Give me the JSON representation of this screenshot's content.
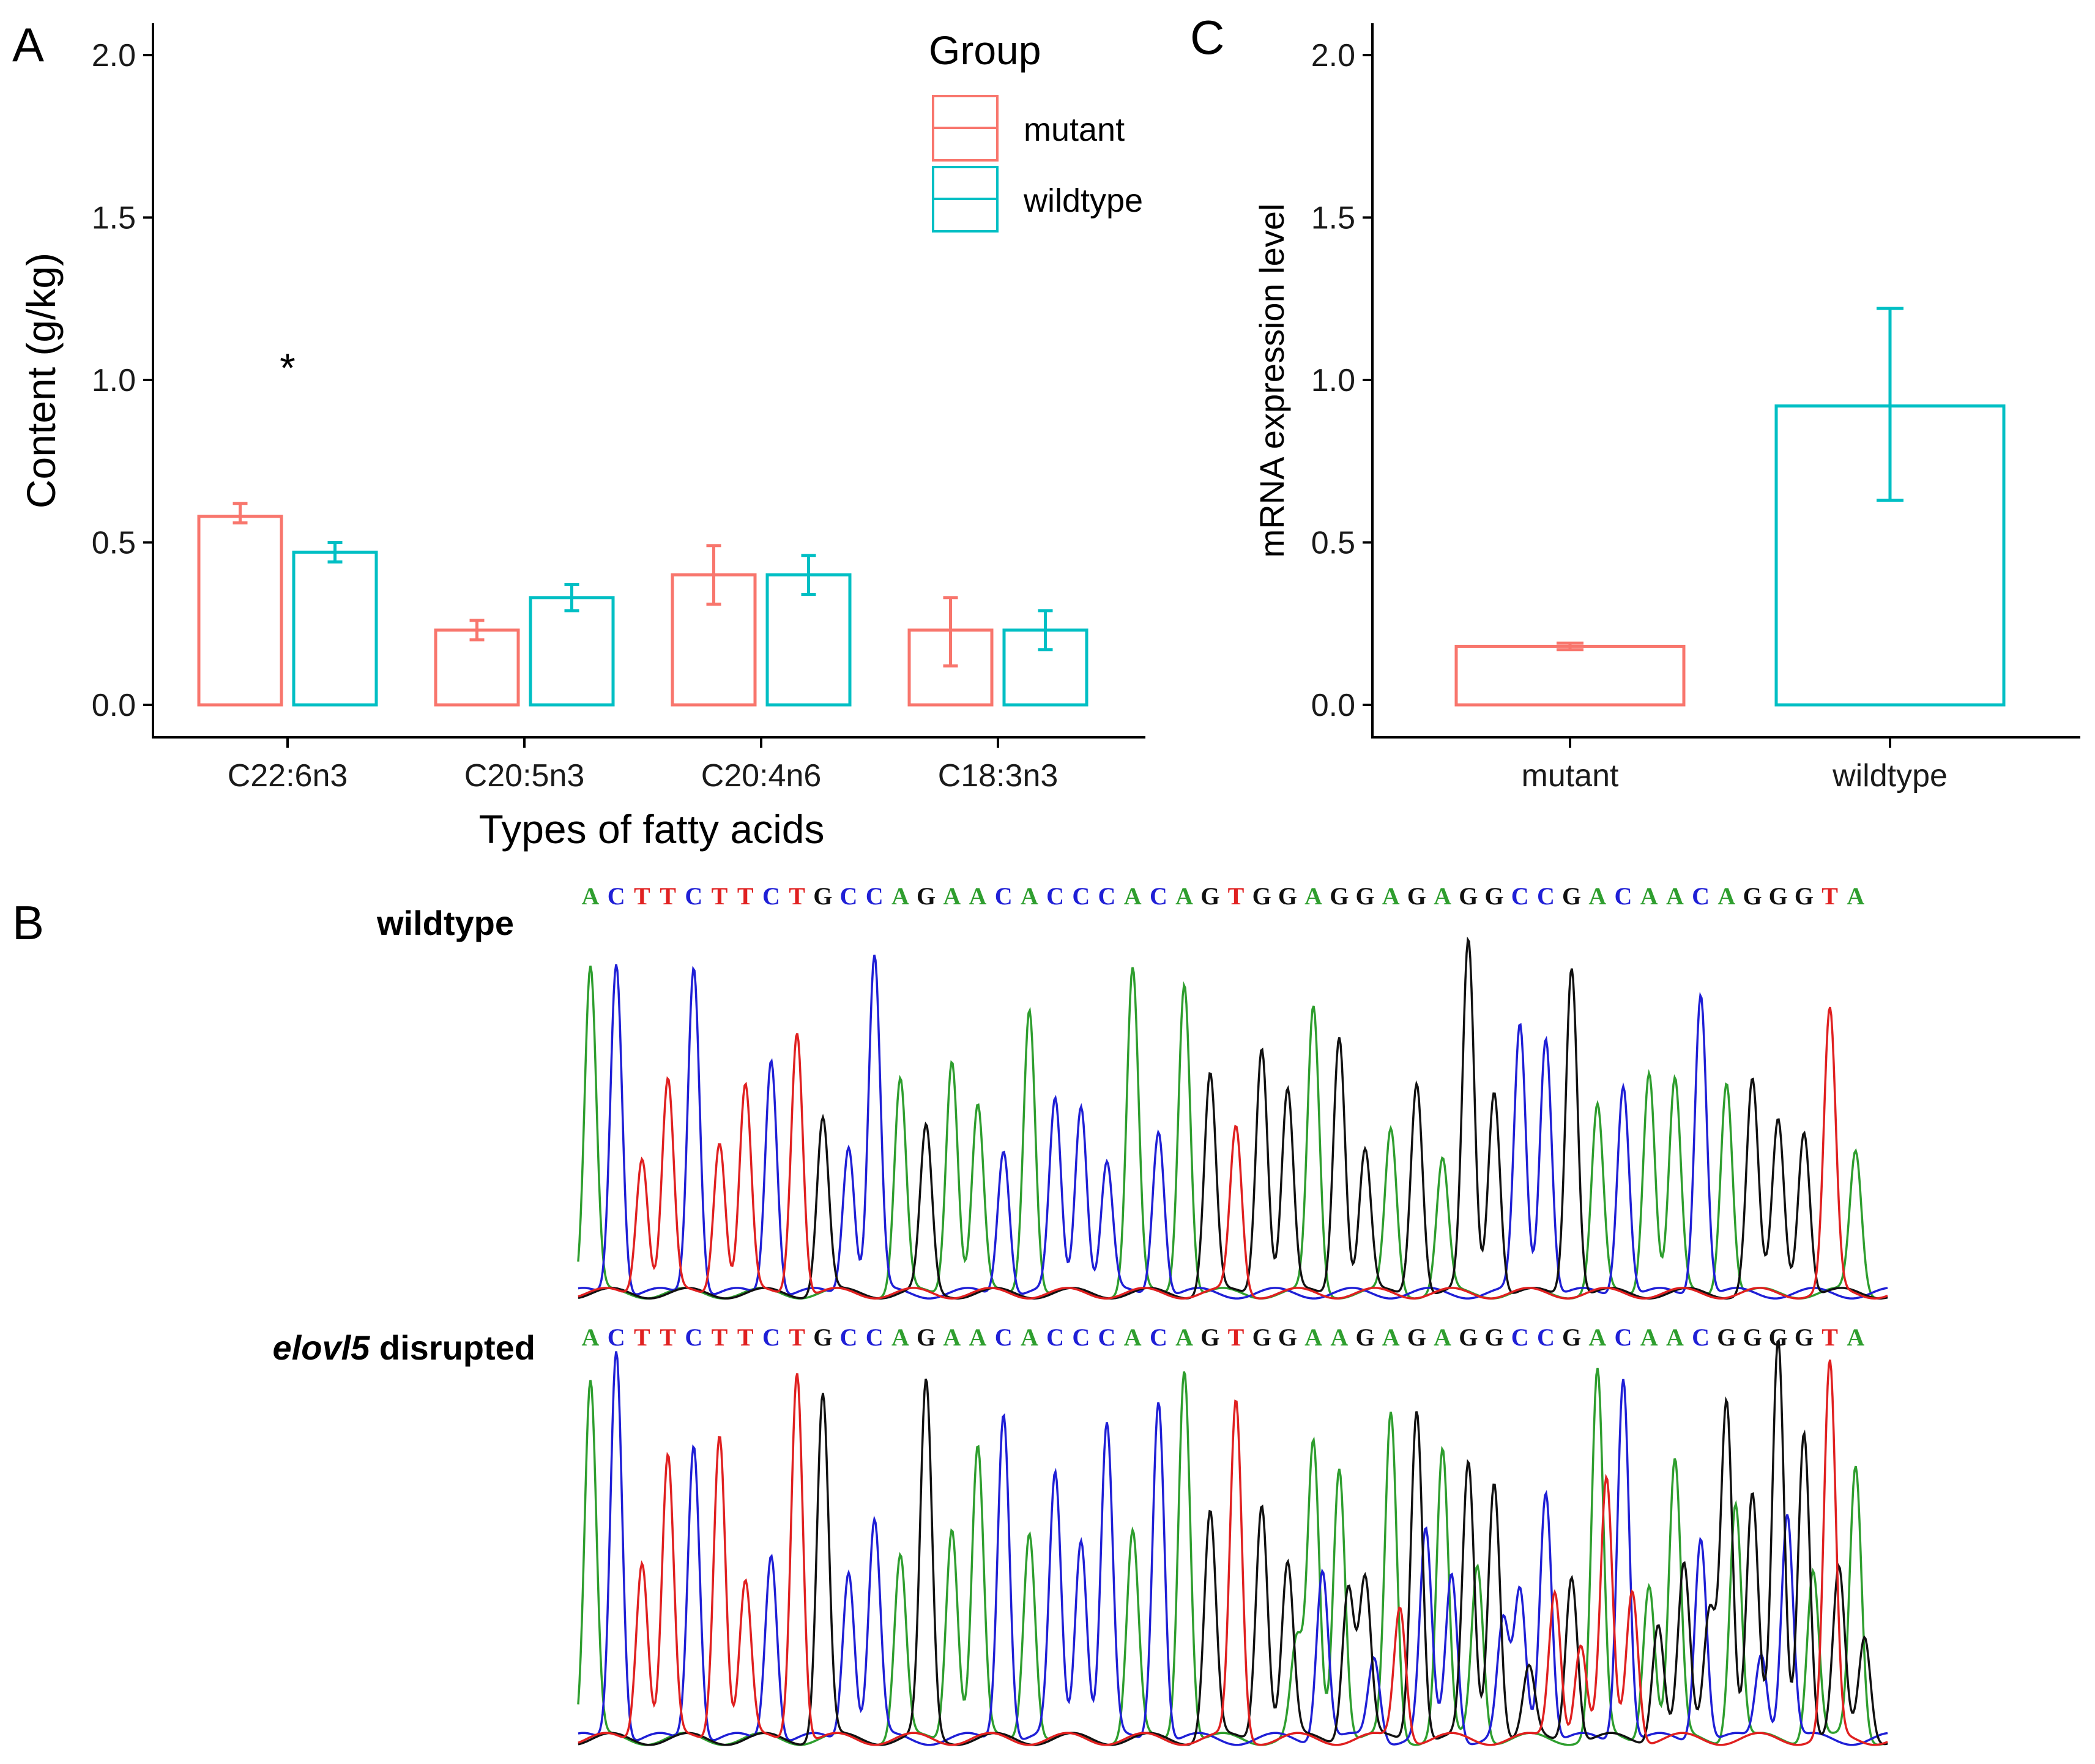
{
  "colors": {
    "mutant": "#F8766D",
    "wildtype": "#00BFC4",
    "base_A": "#2E9E2E",
    "base_C": "#1F1FD6",
    "base_G": "#111111",
    "base_T": "#E02020"
  },
  "panels": {
    "a": {
      "letter": "A"
    },
    "b": {
      "letter": "B",
      "wildtype_label": "wildtype",
      "mutant_label_italic": "elovl5",
      "mutant_label_rest": " disrupted",
      "wildtype_sequence": "ACTTCTTCTGCCAGAACACCCACAGTGGAGGAGAGGCCGACAACAGGGTA",
      "mutant_sequence": "ACTTCTTCTGCCAGAACACCCACAGTGGAAGAGAGGCCGACAACGGGGTA"
    },
    "c": {
      "letter": "C"
    }
  },
  "chart_data": [
    {
      "panel": "A",
      "type": "bar",
      "title": "",
      "xlabel": "Types of fatty acids",
      "ylabel": "Content (g/kg)",
      "ylim": [
        0,
        2.0
      ],
      "yticks": [
        "0.0",
        "0.5",
        "1.0",
        "1.5",
        "2.0"
      ],
      "categories": [
        "C22:6n3",
        "C20:5n3",
        "C20:4n6",
        "C18:3n3"
      ],
      "legend": {
        "title": "Group",
        "position": "top-right",
        "entries": [
          "mutant",
          "wildtype"
        ]
      },
      "series": [
        {
          "name": "mutant",
          "values": [
            0.58,
            0.23,
            0.4,
            0.23
          ],
          "err_low": [
            0.56,
            0.2,
            0.31,
            0.12
          ],
          "err_high": [
            0.62,
            0.26,
            0.49,
            0.33
          ]
        },
        {
          "name": "wildtype",
          "values": [
            0.47,
            0.33,
            0.4,
            0.23
          ],
          "err_low": [
            0.44,
            0.29,
            0.34,
            0.17
          ],
          "err_high": [
            0.5,
            0.37,
            0.46,
            0.29
          ]
        }
      ],
      "annotations": [
        {
          "text": "*",
          "category": "C22:6n3",
          "y": 1.07
        }
      ],
      "grid": false
    },
    {
      "panel": "C",
      "type": "bar",
      "title": "",
      "xlabel": "",
      "ylabel": "mRNA expression level",
      "ylim": [
        0,
        2.0
      ],
      "yticks": [
        "0.0",
        "0.5",
        "1.0",
        "1.5",
        "2.0"
      ],
      "categories": [
        "mutant",
        "wildtype"
      ],
      "values": [
        0.18,
        0.92
      ],
      "err_low": [
        0.17,
        0.63
      ],
      "err_high": [
        0.19,
        1.22
      ],
      "grid": false
    }
  ]
}
